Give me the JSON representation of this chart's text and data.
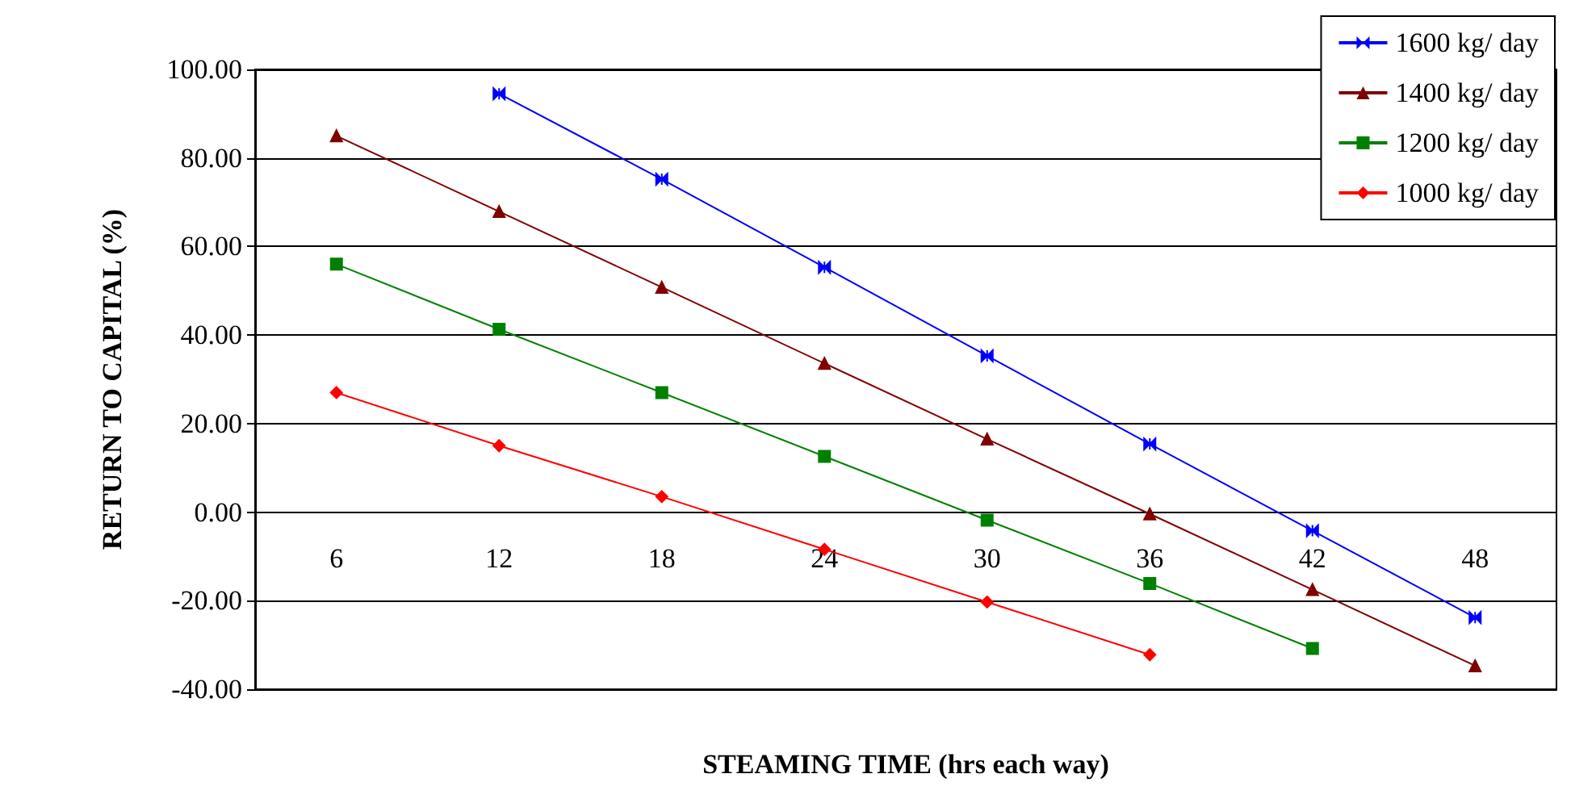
{
  "chart_data": {
    "type": "line",
    "xlabel": "STEAMING TIME (hrs each way)",
    "ylabel": "RETURN TO CAPITAL (%)",
    "categories": [
      "6",
      "12",
      "18",
      "24",
      "30",
      "36",
      "42",
      "48"
    ],
    "series": [
      {
        "name": "1600 kg/ day",
        "color": "#0000ff",
        "marker": "cross",
        "values": [
          null,
          94.5,
          75.2,
          55.3,
          35.3,
          15.4,
          -4.2,
          -23.8
        ]
      },
      {
        "name": "1400 kg/ day",
        "color": "#800000",
        "marker": "triangle",
        "values": [
          85,
          67.9,
          50.8,
          33.6,
          16.5,
          -0.4,
          -17.5,
          -34.7
        ]
      },
      {
        "name": "1200 kg/ day",
        "color": "#008000",
        "marker": "square",
        "values": [
          56,
          41.3,
          27,
          12.6,
          -1.8,
          -16.1,
          -30.8,
          null
        ]
      },
      {
        "name": "1000 kg/ day",
        "color": "#ff0000",
        "marker": "diamond",
        "values": [
          27,
          15,
          3.5,
          -8.4,
          -20.3,
          -32.2,
          null,
          null
        ]
      }
    ],
    "ylim": [
      -40,
      100
    ],
    "yticks": [
      {
        "value": -40,
        "label": "-40.00"
      },
      {
        "value": -20,
        "label": "-20.00"
      },
      {
        "value": 0,
        "label": "0.00"
      },
      {
        "value": 20,
        "label": "20.00"
      },
      {
        "value": 40,
        "label": "40.00"
      },
      {
        "value": 60,
        "label": "60.00"
      },
      {
        "value": 80,
        "label": "80.00"
      },
      {
        "value": 100,
        "label": "100.00"
      }
    ],
    "grid": "y",
    "legend": "top right",
    "line_style": "solid"
  }
}
